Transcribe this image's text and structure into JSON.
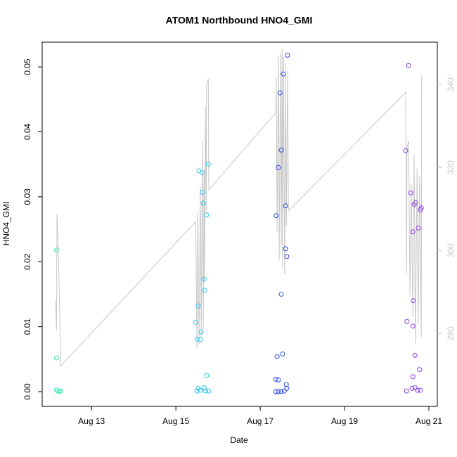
{
  "chart_data": {
    "type": "scatter",
    "title": "ATOM1 Northbound HNO4_GMI",
    "x_label": "Date",
    "y_label": "HNO4_GMI",
    "xlim": [
      11.83,
      21.2
    ],
    "ylim": [
      -0.00227,
      0.0538
    ],
    "y2lim": [
      262.4,
      350.2
    ],
    "xticks": [
      {
        "value": 13,
        "label": "Aug 13"
      },
      {
        "value": 15,
        "label": "Aug 15"
      },
      {
        "value": 17,
        "label": "Aug 17"
      },
      {
        "value": 19,
        "label": "Aug 19"
      },
      {
        "value": 21,
        "label": "Aug 21"
      }
    ],
    "yticks": [
      {
        "value": 0,
        "label": "0.00"
      },
      0.01,
      0.02,
      0.03,
      0.04,
      0.05
    ],
    "y2ticks": [
      280,
      300,
      320,
      340
    ],
    "y2_color": "#c8c8c8",
    "grid": false,
    "series": [
      {
        "type": "line",
        "axis": "y2",
        "color": "#c8c8c8",
        "x": [
          12.15,
          12.17,
          12.18,
          12.2,
          12.23,
          12.27,
          15.47,
          15.48,
          15.5,
          15.52,
          15.55,
          15.58,
          15.6,
          15.63,
          15.65,
          15.67,
          15.68,
          15.7,
          15.72,
          15.73,
          15.77,
          15.78,
          17.37,
          17.38,
          17.4,
          17.43,
          17.45,
          17.48,
          17.5,
          17.52,
          17.53,
          17.55,
          17.58,
          17.6,
          17.62,
          17.65,
          17.67,
          20.45,
          20.47,
          20.48,
          20.52,
          20.55,
          20.58,
          20.62,
          20.65,
          20.68,
          20.72,
          20.75,
          20.78,
          20.82,
          20.83
        ],
        "values": [
          287.8,
          280.7,
          308.8,
          304.4,
          292.5,
          272.2,
          306.9,
          298.3,
          276.4,
          309.5,
          277.3,
          315.4,
          279.0,
          326.4,
          280.7,
          319.7,
          292.5,
          334.9,
          309.5,
          340.0,
          341.4,
          314.6,
          333.2,
          341.7,
          304.4,
          346.8,
          297.6,
          347.6,
          301.0,
          348.5,
          295.9,
          346.8,
          294.2,
          345.1,
          306.1,
          343.4,
          309.5,
          338.1,
          294.2,
          324.7,
          326.4,
          289.2,
          316.3,
          284.1,
          323.1,
          277.3,
          319.7,
          282.4,
          318.0,
          279.0,
          342.2
        ]
      },
      {
        "type": "points",
        "color": "#3fe6b4",
        "x": [
          12.17,
          12.17,
          12.17,
          12.2,
          12.25,
          12.27
        ],
        "values": [
          0.0218,
          0.0052,
          0.0003,
          0.0001,
          0.0,
          0.0001
        ]
      },
      {
        "type": "points",
        "color": "#2ec6ea",
        "x": [
          15.47,
          15.5,
          15.53,
          15.55,
          15.58,
          15.6,
          15.62,
          15.63,
          15.65,
          15.67,
          15.68,
          15.73,
          15.77,
          15.73,
          15.5,
          15.53,
          15.58,
          15.67,
          15.7,
          15.78
        ],
        "values": [
          0.0107,
          0.0081,
          0.0132,
          0.034,
          0.008,
          0.0092,
          0.0337,
          0.0307,
          0.029,
          0.0173,
          0.0156,
          0.0272,
          0.035,
          0.0025,
          0.0001,
          0.0005,
          0.0002,
          0.0006,
          0.0001,
          0.0001
        ]
      },
      {
        "type": "points",
        "color": "#2a4fe6",
        "x": [
          17.38,
          17.43,
          17.47,
          17.5,
          17.5,
          17.53,
          17.55,
          17.6,
          17.6,
          17.63,
          17.65,
          17.4,
          17.37,
          17.43,
          17.62,
          17.37,
          17.43,
          17.5,
          17.57,
          17.63
        ],
        "values": [
          0.0271,
          0.0345,
          0.046,
          0.0372,
          0.015,
          0.0058,
          0.0489,
          0.0286,
          0.022,
          0.0208,
          0.0518,
          0.0054,
          0.0019,
          0.0018,
          0.0011,
          0,
          0,
          0,
          0.0001,
          0.0005
        ]
      },
      {
        "type": "points",
        "color": "#8a3ee8",
        "x": [
          20.45,
          20.52,
          20.57,
          20.48,
          20.62,
          20.65,
          20.68,
          20.75,
          20.8,
          20.82,
          20.63,
          20.62,
          20.67,
          20.78,
          20.62,
          20.47,
          20.6,
          20.67,
          20.73,
          20.8
        ],
        "values": [
          0.0371,
          0.0502,
          0.0306,
          0.0108,
          0.0246,
          0.0288,
          0.0291,
          0.0252,
          0.028,
          0.0283,
          0.014,
          0.0101,
          0.0056,
          0.0034,
          0.0023,
          0.0001,
          0.0005,
          0.0006,
          0.0002,
          0.0002
        ]
      }
    ]
  }
}
